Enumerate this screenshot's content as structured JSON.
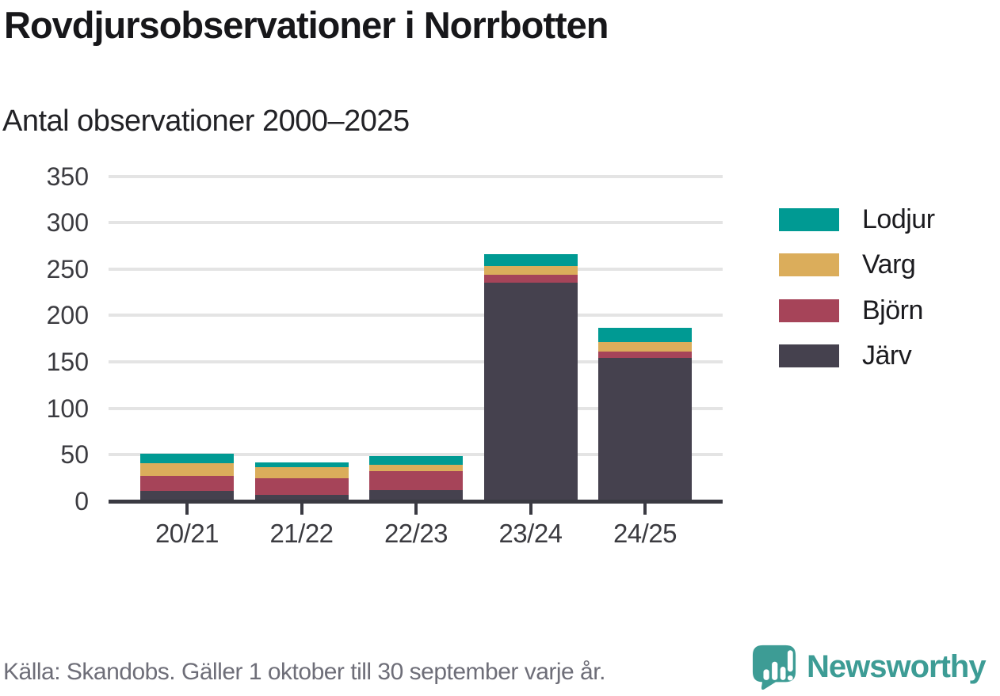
{
  "header": {
    "title": "Rovdjursobservationer i Norrbotten",
    "subtitle": "Antal observationer 2000–2025"
  },
  "chart_data": {
    "type": "bar",
    "stacked": true,
    "title": "Rovdjursobservationer i Norrbotten",
    "subtitle": "Antal observationer 2000–2025",
    "categories": [
      "20/21",
      "21/22",
      "22/23",
      "23/24",
      "24/25"
    ],
    "series": [
      {
        "name": "Lodjur",
        "color": "#009a93",
        "values": [
          10,
          5,
          10,
          13,
          16
        ]
      },
      {
        "name": "Varg",
        "color": "#dbad5b",
        "values": [
          14,
          12,
          7,
          9,
          10
        ]
      },
      {
        "name": "Björn",
        "color": "#a64459",
        "values": [
          16,
          18,
          20,
          9,
          7
        ]
      },
      {
        "name": "Järv",
        "color": "#45414e",
        "values": [
          11,
          7,
          12,
          235,
          154
        ]
      }
    ],
    "stack_order_bottom_to_top": [
      "Järv",
      "Björn",
      "Varg",
      "Lodjur"
    ],
    "totals": [
      51,
      42,
      49,
      266,
      187
    ],
    "xlabel": "",
    "ylabel": "",
    "ylim": [
      0,
      350
    ],
    "yticks": [
      0,
      50,
      100,
      150,
      200,
      250,
      300,
      350
    ],
    "grid": true,
    "legend_position": "right"
  },
  "footer": {
    "source_text": "Källa: Skandobs. Gäller 1 oktober till 30 september varje år.",
    "brand": "Newsworthy"
  },
  "colors": {
    "teal": "#009a93",
    "gold": "#dbad5b",
    "maroon": "#a64459",
    "dark": "#45414e",
    "axis": "#3a3a42",
    "gridline": "#e4e4e4",
    "brand_teal": "#3d9c95"
  }
}
